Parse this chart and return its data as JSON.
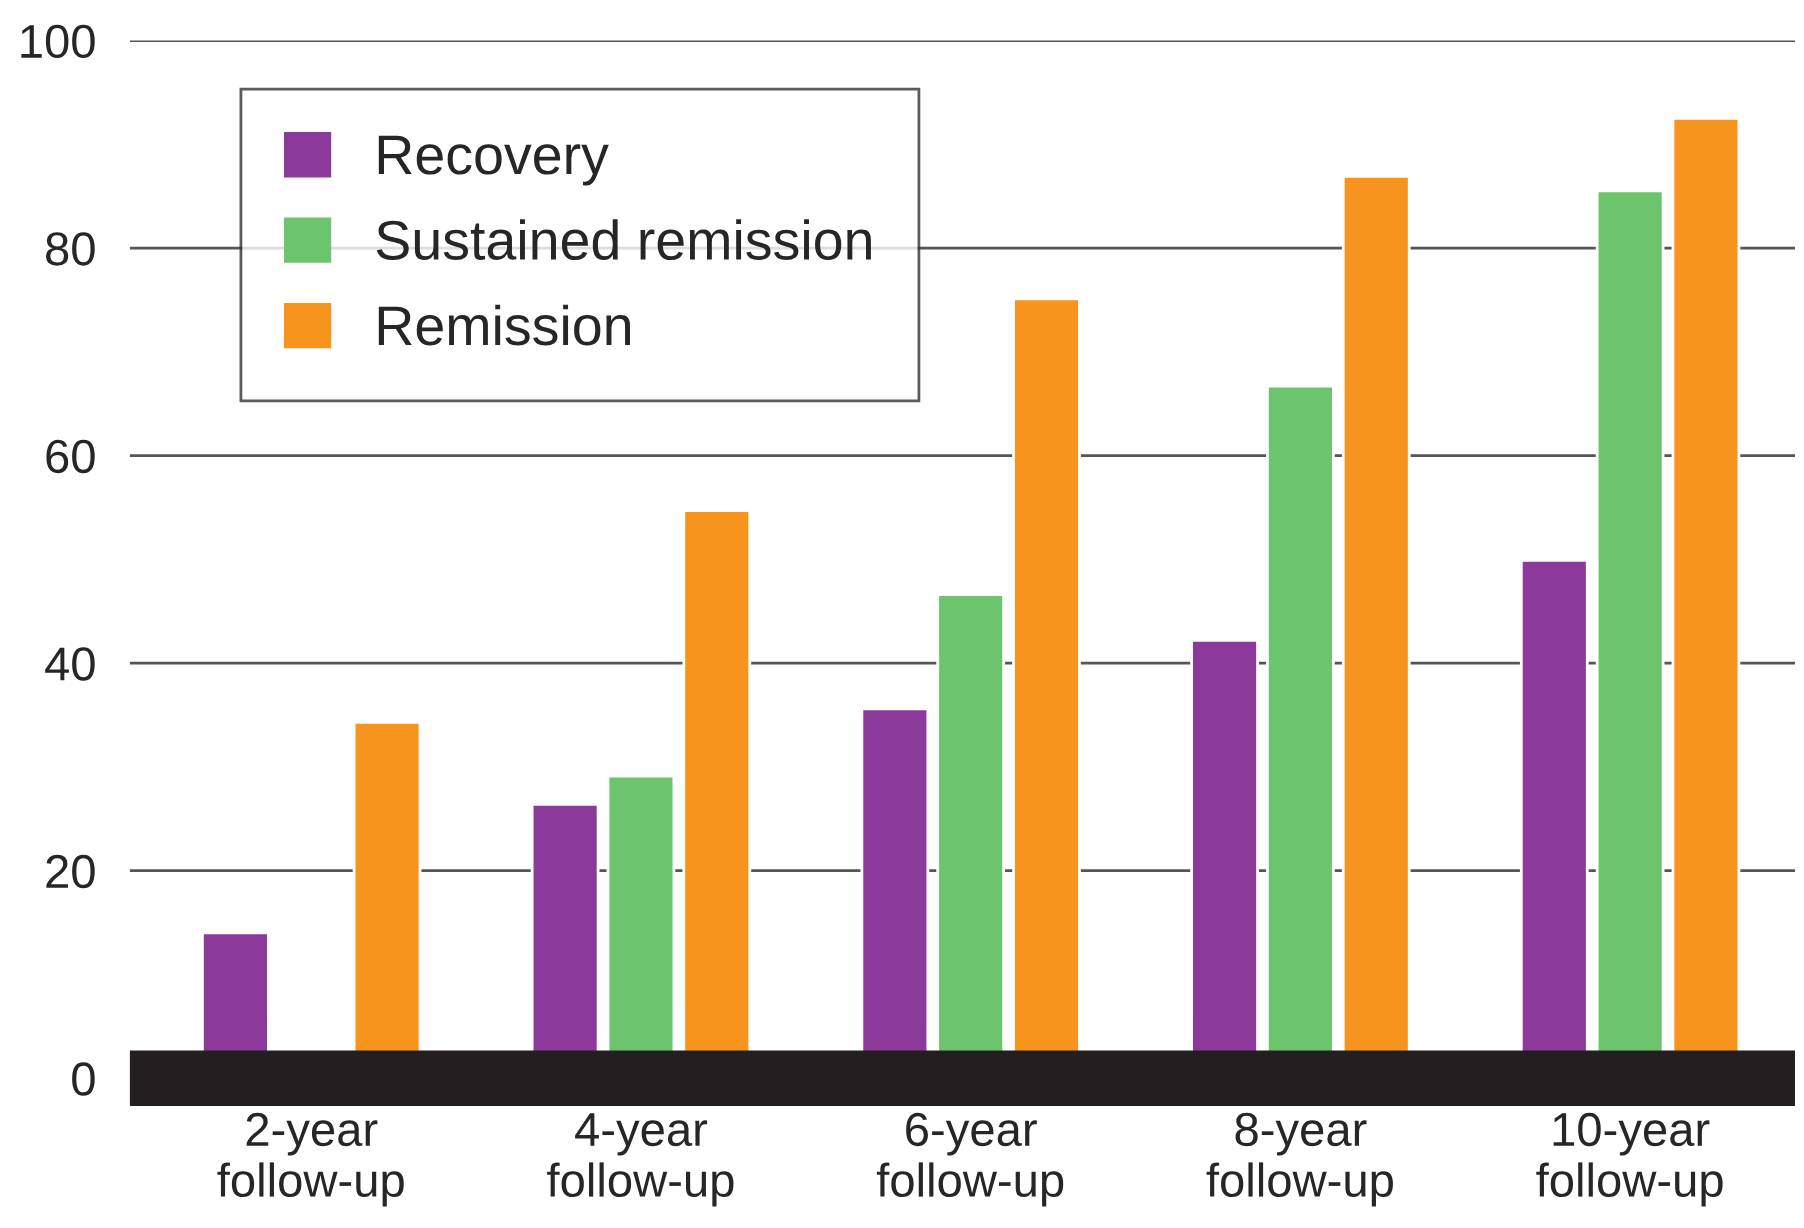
{
  "chart_data": {
    "type": "bar",
    "categories": [
      "2-year\nfollow-up",
      "4-year\nfollow-up",
      "6-year\nfollow-up",
      "8-year\nfollow-up",
      "10-year\nfollow-up"
    ],
    "series": [
      {
        "name": "Recovery",
        "color": "#8b3a9b",
        "values": [
          14,
          26.4,
          35.6,
          42.2,
          49.9
        ]
      },
      {
        "name": "Sustained remission",
        "color": "#6cc56c",
        "values": [
          null,
          29.1,
          46.6,
          66.7,
          85.5
        ]
      },
      {
        "name": "Remission",
        "color": "#f7941d",
        "values": [
          34.3,
          54.7,
          75.1,
          86.9,
          92.5
        ]
      }
    ],
    "ylim": [
      0,
      100
    ],
    "yticks": [
      0,
      20,
      40,
      60,
      80,
      100
    ],
    "grid": "y",
    "legend": "top left"
  }
}
